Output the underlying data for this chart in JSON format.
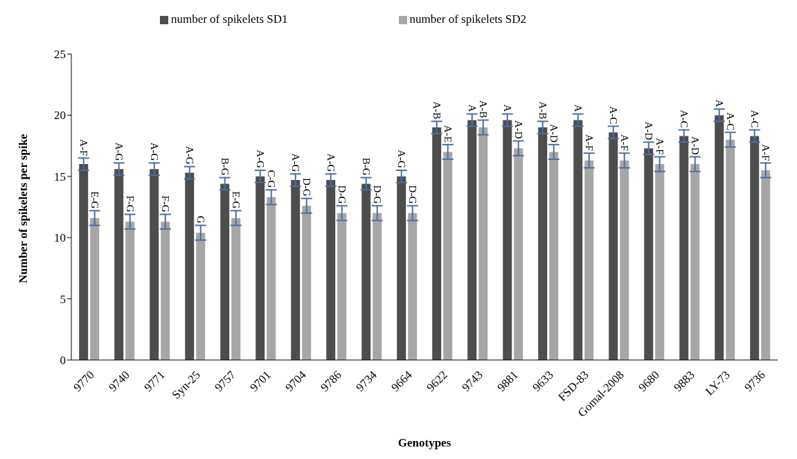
{
  "chart_data": {
    "type": "bar",
    "xlabel": "Genotypes",
    "ylabel": "Number of spikelets per spike",
    "categories": [
      "9770",
      "9740",
      "9771",
      "Syn-25",
      "9757",
      "9701",
      "9704",
      "9786",
      "9734",
      "9664",
      "9622",
      "9743",
      "9881",
      "9633",
      "FSD-83",
      "Gomal-2008",
      "9680",
      "9883",
      "LY-73",
      "9736"
    ],
    "series": [
      {
        "name": "number of spikelets SD1",
        "color": "#4d4d4d",
        "values": [
          16.0,
          15.6,
          15.6,
          15.3,
          14.4,
          15.0,
          14.7,
          14.7,
          14.4,
          15.0,
          19.0,
          19.6,
          19.6,
          19.0,
          19.6,
          18.6,
          17.3,
          18.3,
          20.0,
          18.3
        ],
        "errors": [
          0.5,
          0.5,
          0.5,
          0.5,
          0.5,
          0.5,
          0.5,
          0.5,
          0.5,
          0.5,
          0.5,
          0.5,
          0.5,
          0.5,
          0.5,
          0.5,
          0.5,
          0.5,
          0.5,
          0.5
        ],
        "value_labels": [
          "A-F",
          "A-G",
          "A-G",
          "A-G",
          "B-G",
          "A-G",
          "A-G",
          "A-G",
          "B-G",
          "A-G",
          "A-B",
          "A",
          "A",
          "A-B",
          "A",
          "A-C",
          "A-D",
          "A-C",
          "A",
          "A-C"
        ]
      },
      {
        "name": "number of spikelets SD2",
        "color": "#a6a6a6",
        "values": [
          11.6,
          11.3,
          11.3,
          10.4,
          11.6,
          13.3,
          12.6,
          12.0,
          12.0,
          12.0,
          17.0,
          19.0,
          17.3,
          17.0,
          16.3,
          16.3,
          16.0,
          16.0,
          18.0,
          15.5
        ],
        "errors": [
          0.6,
          0.6,
          0.6,
          0.6,
          0.6,
          0.6,
          0.6,
          0.6,
          0.6,
          0.6,
          0.6,
          0.6,
          0.6,
          0.6,
          0.6,
          0.6,
          0.6,
          0.6,
          0.6,
          0.6
        ],
        "value_labels": [
          "E-G",
          "F-G",
          "F-G",
          "G",
          "E-G",
          "C-G",
          "D-G",
          "D-G",
          "D-G",
          "D-G",
          "A-E",
          "A-B",
          "A-D",
          "A-D",
          "A-F",
          "A-F",
          "A-F",
          "A-D",
          "A-C",
          "A-F"
        ]
      }
    ],
    "ylim": [
      0,
      25
    ],
    "yticks": [
      0,
      5,
      10,
      15,
      20,
      25
    ],
    "grid": false,
    "legend": "top"
  }
}
